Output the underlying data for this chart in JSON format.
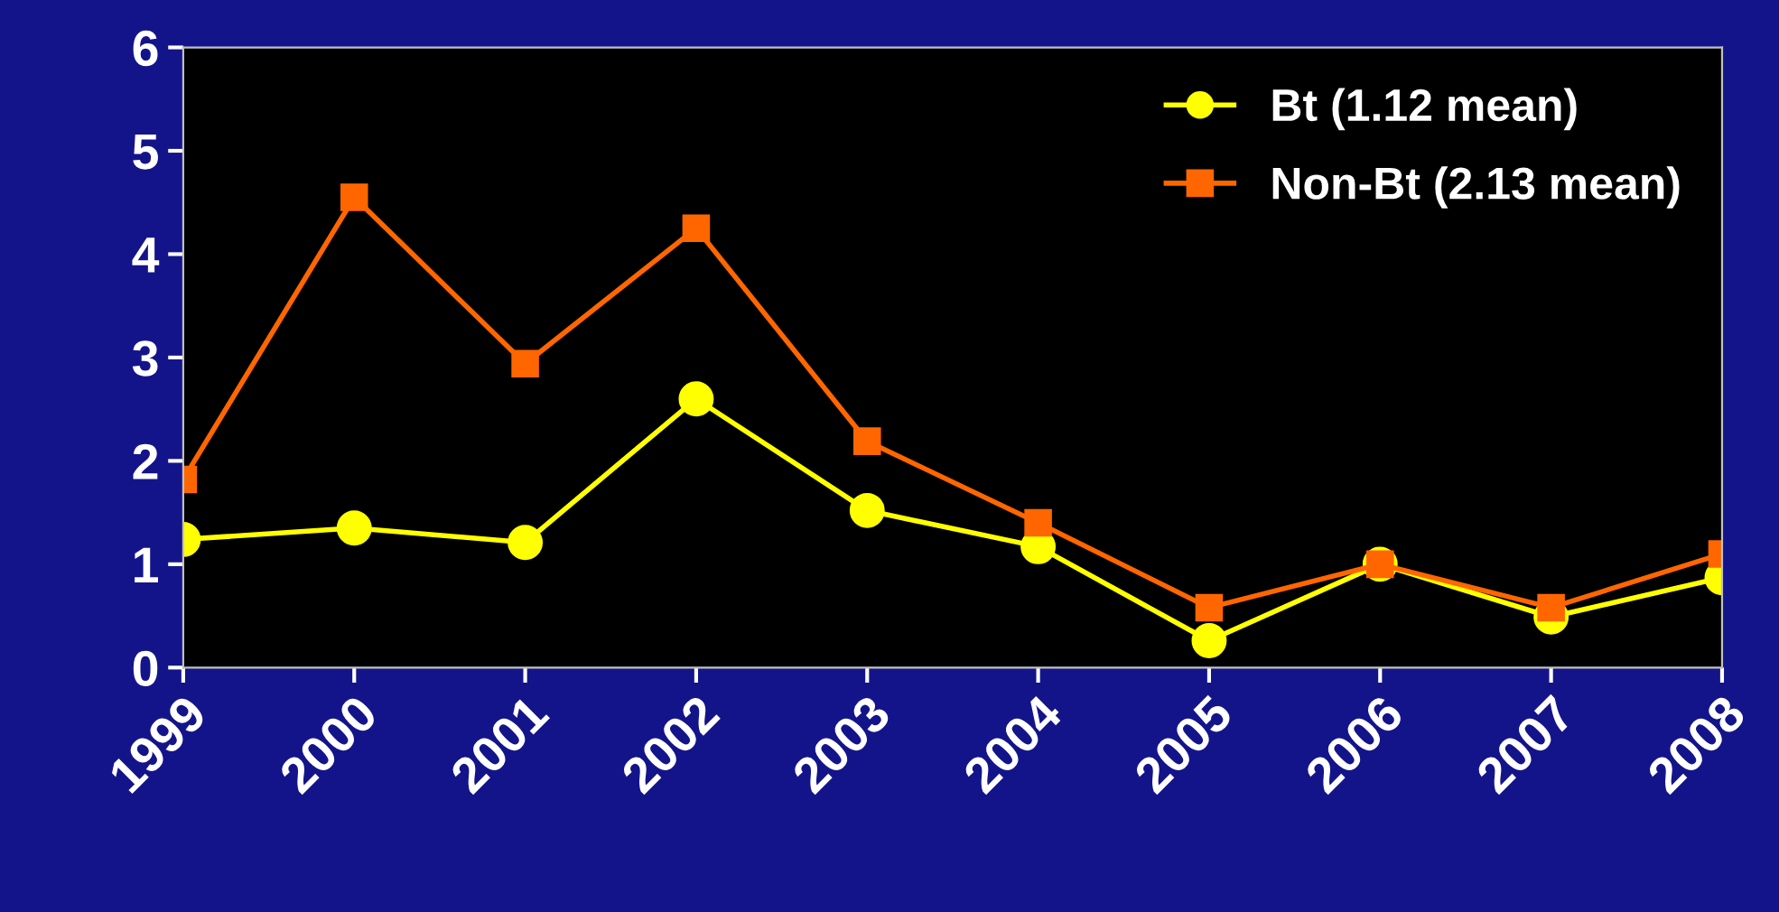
{
  "chart_data": {
    "type": "line",
    "categories": [
      "1999",
      "2000",
      "2001",
      "2002",
      "2003",
      "2004",
      "2005",
      "2006",
      "2007",
      "2008"
    ],
    "series": [
      {
        "name": "Bt (1.12 mean)",
        "color": "#ffff00",
        "marker": "circle",
        "values": [
          1.24,
          1.35,
          1.21,
          2.6,
          1.52,
          1.17,
          0.26,
          1.0,
          0.49,
          0.87
        ]
      },
      {
        "name": "Non-Bt (2.13 mean)",
        "color": "#ff6600",
        "marker": "square",
        "values": [
          1.82,
          4.55,
          2.94,
          4.25,
          2.19,
          1.4,
          0.58,
          1.0,
          0.58,
          1.1
        ]
      }
    ],
    "ylim": [
      0,
      6
    ],
    "yticks": [
      0,
      1,
      2,
      3,
      4,
      5,
      6
    ],
    "grid": false,
    "legend": "top right"
  }
}
